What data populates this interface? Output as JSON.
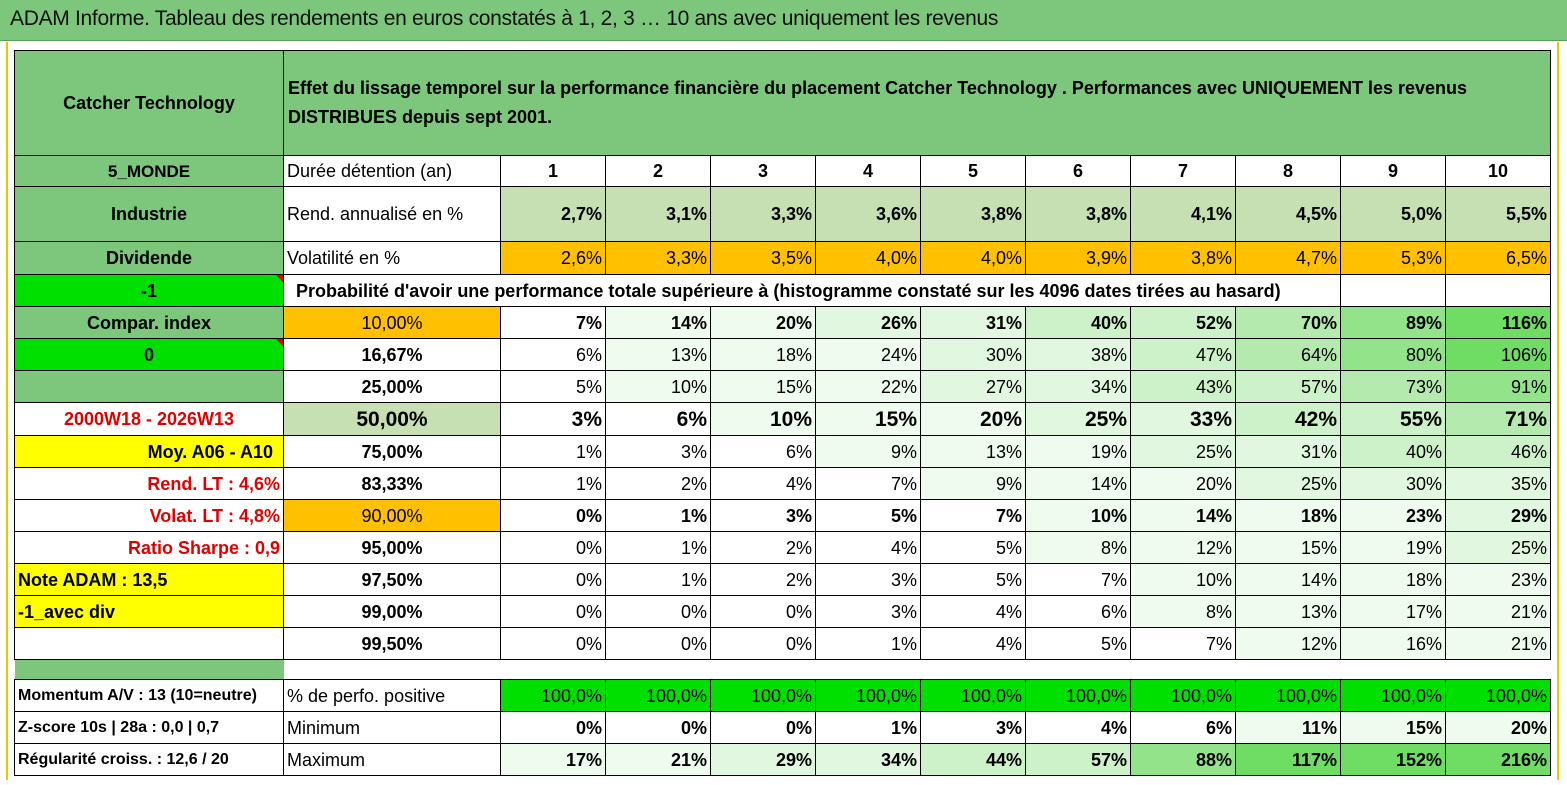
{
  "banner": "ADAM Informe. Tableau des rendements en euros constatés à 1, 2, 3 … 10 ans avec uniquement les revenus",
  "header": {
    "fund_name": "Catcher Technology",
    "description": "Effet du lissage temporel sur la performance financière du placement Catcher Technology . Performances avec UNIQUEMENT les revenus DISTRIBUES depuis sept 2001."
  },
  "left": {
    "zone": "5_MONDE",
    "sector": "Industrie",
    "type": "Dividende",
    "code1": "-1",
    "compar": "Compar. index",
    "code2": "0",
    "period": "2000W18 - 2026W13",
    "moy": "Moy. A06 - A10",
    "rend_lt": "Rend. LT :   4,6%",
    "volat_lt": "Volat. LT :   4,8%",
    "sharpe": "Ratio Sharpe :    0,9",
    "note": "Note ADAM : 13,5",
    "avec_div": "-1_avec div",
    "momentum": "Momentum A/V : 13 (10=neutre)",
    "zscore": "Z-score 10s | 28a : 0,0 | 0,7",
    "regularite": "Régularité croiss. : 12,6 / 20"
  },
  "labels": {
    "duree": "Durée détention (an)",
    "rend": "Rend. annualisé en %",
    "volat": "Volatilité en %",
    "proba": "Probabilité d'avoir une performance totale supérieure à (histogramme constaté sur les 4096 dates tirées au hasard)",
    "positive": "% de perfo. positive",
    "minimum": "Minimum",
    "maximum": "Maximum"
  },
  "years": [
    "1",
    "2",
    "3",
    "4",
    "5",
    "6",
    "7",
    "8",
    "9",
    "10"
  ],
  "rend": [
    "2,7%",
    "3,1%",
    "3,3%",
    "3,6%",
    "3,8%",
    "3,8%",
    "4,1%",
    "4,5%",
    "5,0%",
    "5,5%"
  ],
  "volat": [
    "2,6%",
    "3,3%",
    "3,5%",
    "4,0%",
    "4,0%",
    "3,9%",
    "3,8%",
    "4,7%",
    "5,3%",
    "6,5%"
  ],
  "prob_rows": [
    {
      "label": "10,00%",
      "values": [
        "7%",
        "14%",
        "20%",
        "26%",
        "31%",
        "40%",
        "52%",
        "70%",
        "89%",
        "116%"
      ]
    },
    {
      "label": "16,67%",
      "values": [
        "6%",
        "13%",
        "18%",
        "24%",
        "30%",
        "38%",
        "47%",
        "64%",
        "80%",
        "106%"
      ]
    },
    {
      "label": "25,00%",
      "values": [
        "5%",
        "10%",
        "15%",
        "22%",
        "27%",
        "34%",
        "43%",
        "57%",
        "73%",
        "91%"
      ]
    },
    {
      "label": "50,00%",
      "values": [
        "3%",
        "6%",
        "10%",
        "15%",
        "20%",
        "25%",
        "33%",
        "42%",
        "55%",
        "71%"
      ]
    },
    {
      "label": "75,00%",
      "values": [
        "1%",
        "3%",
        "6%",
        "9%",
        "13%",
        "19%",
        "25%",
        "31%",
        "40%",
        "46%"
      ]
    },
    {
      "label": "83,33%",
      "values": [
        "1%",
        "2%",
        "4%",
        "7%",
        "9%",
        "14%",
        "20%",
        "25%",
        "30%",
        "35%"
      ]
    },
    {
      "label": "90,00%",
      "values": [
        "0%",
        "1%",
        "3%",
        "5%",
        "7%",
        "10%",
        "14%",
        "18%",
        "23%",
        "29%"
      ]
    },
    {
      "label": "95,00%",
      "values": [
        "0%",
        "1%",
        "2%",
        "4%",
        "5%",
        "8%",
        "12%",
        "15%",
        "19%",
        "25%"
      ]
    },
    {
      "label": "97,50%",
      "values": [
        "0%",
        "1%",
        "2%",
        "3%",
        "5%",
        "7%",
        "10%",
        "14%",
        "18%",
        "23%"
      ]
    },
    {
      "label": "99,00%",
      "values": [
        "0%",
        "0%",
        "0%",
        "3%",
        "4%",
        "6%",
        "8%",
        "13%",
        "17%",
        "21%"
      ]
    },
    {
      "label": "99,50%",
      "values": [
        "0%",
        "0%",
        "0%",
        "1%",
        "4%",
        "5%",
        "7%",
        "12%",
        "16%",
        "21%"
      ]
    }
  ],
  "positive": [
    "100,0%",
    "100,0%",
    "100,0%",
    "100,0%",
    "100,0%",
    "100,0%",
    "100,0%",
    "100,0%",
    "100,0%",
    "100,0%"
  ],
  "minimum": [
    "0%",
    "0%",
    "0%",
    "1%",
    "3%",
    "4%",
    "6%",
    "11%",
    "15%",
    "20%"
  ],
  "maximum": [
    "17%",
    "21%",
    "29%",
    "34%",
    "44%",
    "57%",
    "88%",
    "117%",
    "152%",
    "216%"
  ]
}
